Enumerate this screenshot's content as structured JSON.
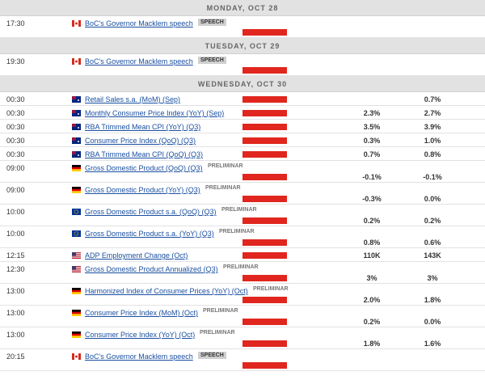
{
  "days": [
    {
      "label": "MONDAY, OCT 28",
      "events": [
        {
          "time": "17:30",
          "flag": "ca",
          "title": "BoC's Governor Macklem speech",
          "tag": "SPEECH",
          "tag_style": "box"
        }
      ]
    },
    {
      "label": "TUESDAY, OCT 29",
      "events": [
        {
          "time": "19:30",
          "flag": "ca",
          "title": "BoC's Governor Macklem speech",
          "tag": "SPEECH",
          "tag_style": "box"
        }
      ]
    },
    {
      "label": "WEDNESDAY, OCT 30",
      "events": [
        {
          "time": "00:30",
          "flag": "au",
          "title": "Retail Sales s.a. (MoM) (Sep)",
          "previous": "0.7%"
        },
        {
          "time": "00:30",
          "flag": "au",
          "title": "Monthly Consumer Price Index (YoY) (Sep)",
          "forecast": "2.3%",
          "previous": "2.7%"
        },
        {
          "time": "00:30",
          "flag": "au",
          "title": "RBA Trimmed Mean CPI (YoY) (Q3)",
          "forecast": "3.5%",
          "previous": "3.9%"
        },
        {
          "time": "00:30",
          "flag": "au",
          "title": "Consumer Price Index (QoQ) (Q3)",
          "forecast": "0.3%",
          "previous": "1.0%"
        },
        {
          "time": "00:30",
          "flag": "au",
          "title": "RBA Trimmed Mean CPI (QoQ) (Q3)",
          "forecast": "0.7%",
          "previous": "0.8%"
        },
        {
          "time": "09:00",
          "flag": "de",
          "title": "Gross Domestic Product (QoQ) (Q3)",
          "tag": "PRELIMINAR",
          "forecast": "-0.1%",
          "previous": "-0.1%"
        },
        {
          "time": "09:00",
          "flag": "de",
          "title": "Gross Domestic Product (YoY) (Q3)",
          "tag": "PRELIMINAR",
          "forecast": "-0.3%",
          "previous": "0.0%"
        },
        {
          "time": "10:00",
          "flag": "eu",
          "title": "Gross Domestic Product s.a. (QoQ) (Q3)",
          "tag": "PRELIMINAR",
          "forecast": "0.2%",
          "previous": "0.2%"
        },
        {
          "time": "10:00",
          "flag": "eu",
          "title": "Gross Domestic Product s.a. (YoY) (Q3)",
          "tag": "PRELIMINAR",
          "forecast": "0.8%",
          "previous": "0.6%"
        },
        {
          "time": "12:15",
          "flag": "us",
          "title": "ADP Employment Change (Oct)",
          "forecast": "110K",
          "previous": "143K"
        },
        {
          "time": "12:30",
          "flag": "us",
          "title": "Gross Domestic Product Annualized (Q3)",
          "tag": "PRELIMINAR",
          "forecast": "3%",
          "previous": "3%"
        },
        {
          "time": "13:00",
          "flag": "de",
          "title": "Harmonized Index of Consumer Prices (YoY) (Oct)",
          "tag": "PRELIMINAR",
          "forecast": "2.0%",
          "previous": "1.8%"
        },
        {
          "time": "13:00",
          "flag": "de",
          "title": "Consumer Price Index (MoM) (Oct)",
          "tag": "PRELIMINAR",
          "forecast": "0.2%",
          "previous": "0.0%"
        },
        {
          "time": "13:00",
          "flag": "de",
          "title": "Consumer Price Index (YoY) (Oct)",
          "tag": "PRELIMINAR",
          "forecast": "1.8%",
          "previous": "1.6%"
        },
        {
          "time": "20:15",
          "flag": "ca",
          "title": "BoC's Governor Macklem speech",
          "tag": "SPEECH",
          "tag_style": "box"
        }
      ]
    }
  ]
}
